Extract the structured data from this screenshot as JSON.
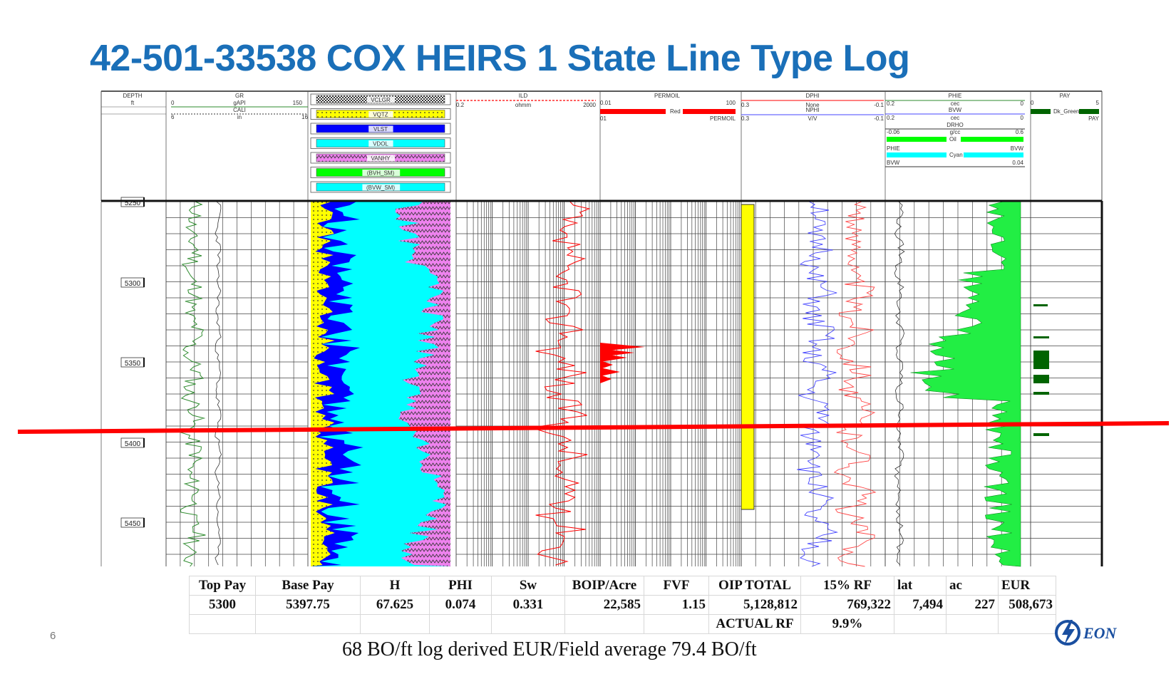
{
  "title": "42-501-33538 COX HEIRS 1 State Line Type Log",
  "page_number": "6",
  "caption": "68 BO/ft log derived EUR/Field average 79.4 BO/ft",
  "logo_text": "EON",
  "colors": {
    "title": "#1a6fb8",
    "gr": "#2e8b2e",
    "vclgr": "#ff00ff",
    "vqtz": "#ffff00",
    "vlst": "#0000ff",
    "vdol": "#00ffff",
    "vanhy": "#ee82ee",
    "bvh": "#00ff00",
    "red_marker": "#ff0000",
    "oip_bar": "#ffff00",
    "pay": "#006400"
  },
  "log_header": {
    "depth": {
      "label": "DEPTH",
      "unit": "ft"
    },
    "gr": {
      "label": "GR",
      "unit": "gAPI",
      "min": "0",
      "max": "150"
    },
    "cali": {
      "label": "CALI",
      "unit": "in",
      "min": "6",
      "max": "16"
    },
    "lith_tracks": [
      "VCLGR",
      "VQTZ",
      "VLST",
      "VDOL",
      "VANHY",
      "(BVH_SM)",
      "(BVW_SM)"
    ],
    "ild": {
      "label": "ILD",
      "unit": "ohmm",
      "min": "0.2",
      "max": "2000"
    },
    "permoil": {
      "label": "PERMOIL",
      "min": "0.01",
      "max": "100",
      "fill_label": "Red",
      "bottom_min": "01",
      "bottom_label": "PERMOIL"
    },
    "dphi": {
      "label": "DPHI",
      "unit": "None",
      "min": "0.3",
      "max": "-0.1"
    },
    "nphi": {
      "label": "NPHI",
      "unit": "V/V",
      "min": "0.3",
      "max": "-0.1"
    },
    "phie": {
      "label": "PHIE",
      "unit": "cec",
      "min": "0.2",
      "max": "0"
    },
    "bvw": {
      "label": "BVW",
      "unit": "cec",
      "min": "0.2",
      "max": "0"
    },
    "drho": {
      "label": "DRHO",
      "unit": "g/cc",
      "min": "-0.06",
      "max": "0.6"
    },
    "oil_label": "Oil",
    "cyan_label": "Cyan",
    "phie_bvw": {
      "left": "PHIE",
      "right": "BVW"
    },
    "bvw_scale": {
      "left": "BVW",
      "right": "0.04"
    },
    "pay": {
      "label": "PAY",
      "min": "0",
      "max": "5",
      "fill_label": "Dk_Green",
      "bottom_label": "PAY"
    }
  },
  "depth_labels": [
    "5250",
    "5300",
    "5350",
    "5400",
    "5450"
  ],
  "table": {
    "headers": [
      "Top Pay",
      "Base Pay",
      "H",
      "PHI",
      "Sw",
      "BOIP/Acre",
      "FVF",
      "OIP TOTAL",
      "15% RF",
      "lat",
      "ac",
      "EUR"
    ],
    "values": [
      "5300",
      "5397.75",
      "67.625",
      "0.074",
      "0.331",
      "22,585",
      "1.15",
      "5,128,812",
      "769,322",
      "7,494",
      "227",
      "508,673"
    ],
    "actual_rf_label": "ACTUAL RF",
    "actual_rf_value": "9.9%"
  }
}
